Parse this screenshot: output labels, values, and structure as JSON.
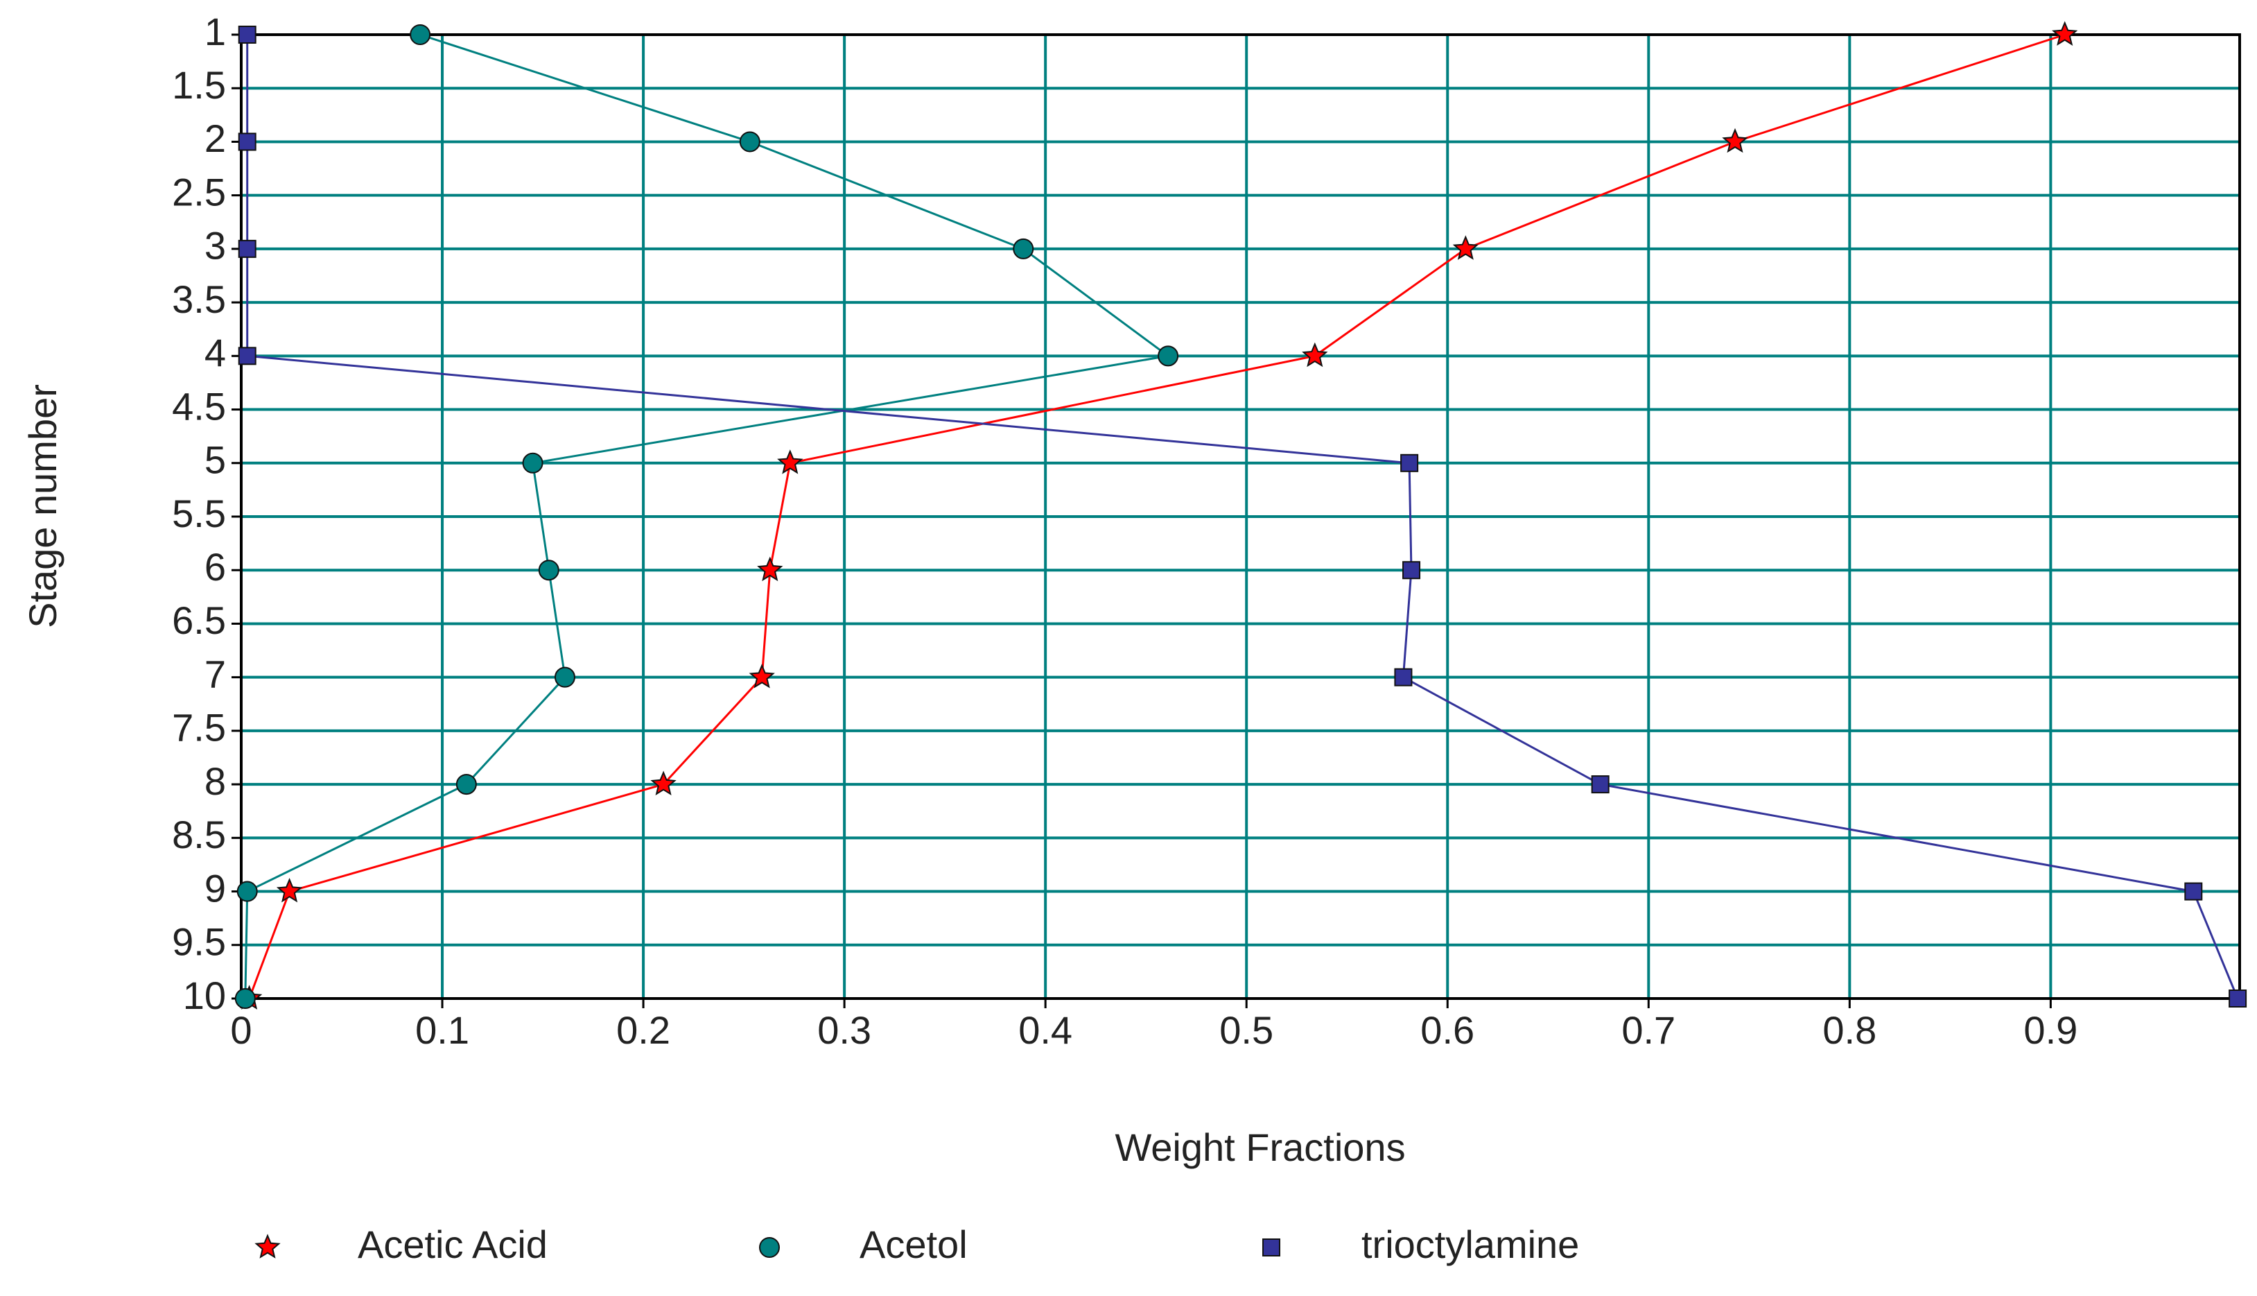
{
  "chart_data": {
    "type": "line",
    "orientation": "horizontal",
    "xlabel": "Weight Fractions",
    "ylabel": "Stage number",
    "y": [
      1,
      2,
      3,
      4,
      5,
      6,
      7,
      8,
      9,
      10
    ],
    "ylim": [
      1,
      10
    ],
    "y_inverted": true,
    "yticks": [
      1,
      1.5,
      2,
      2.5,
      3,
      3.5,
      4,
      4.5,
      5,
      5.5,
      6,
      6.5,
      7,
      7.5,
      8,
      8.5,
      9,
      9.5,
      10
    ],
    "xlim": [
      0,
      0.994
    ],
    "xticks": [
      0,
      0.1,
      0.2,
      0.3,
      0.4,
      0.5,
      0.6,
      0.7,
      0.8,
      0.9
    ],
    "grid": true,
    "grid_color": "#008080",
    "legend": "bottom",
    "series": [
      {
        "name": "Acetic Acid",
        "color": "#ff0000",
        "marker": "star",
        "values": [
          0.907,
          0.743,
          0.609,
          0.534,
          0.273,
          0.263,
          0.259,
          0.21,
          0.024,
          0.004
        ]
      },
      {
        "name": "Acetol",
        "color": "#008080",
        "marker": "circle",
        "values": [
          0.089,
          0.253,
          0.389,
          0.461,
          0.145,
          0.153,
          0.161,
          0.112,
          0.003,
          0.002
        ]
      },
      {
        "name": "trioctylamine",
        "color": "#333399",
        "marker": "square",
        "values": [
          0.003,
          0.003,
          0.003,
          0.003,
          0.581,
          0.582,
          0.578,
          0.676,
          0.971,
          0.993
        ]
      }
    ]
  }
}
